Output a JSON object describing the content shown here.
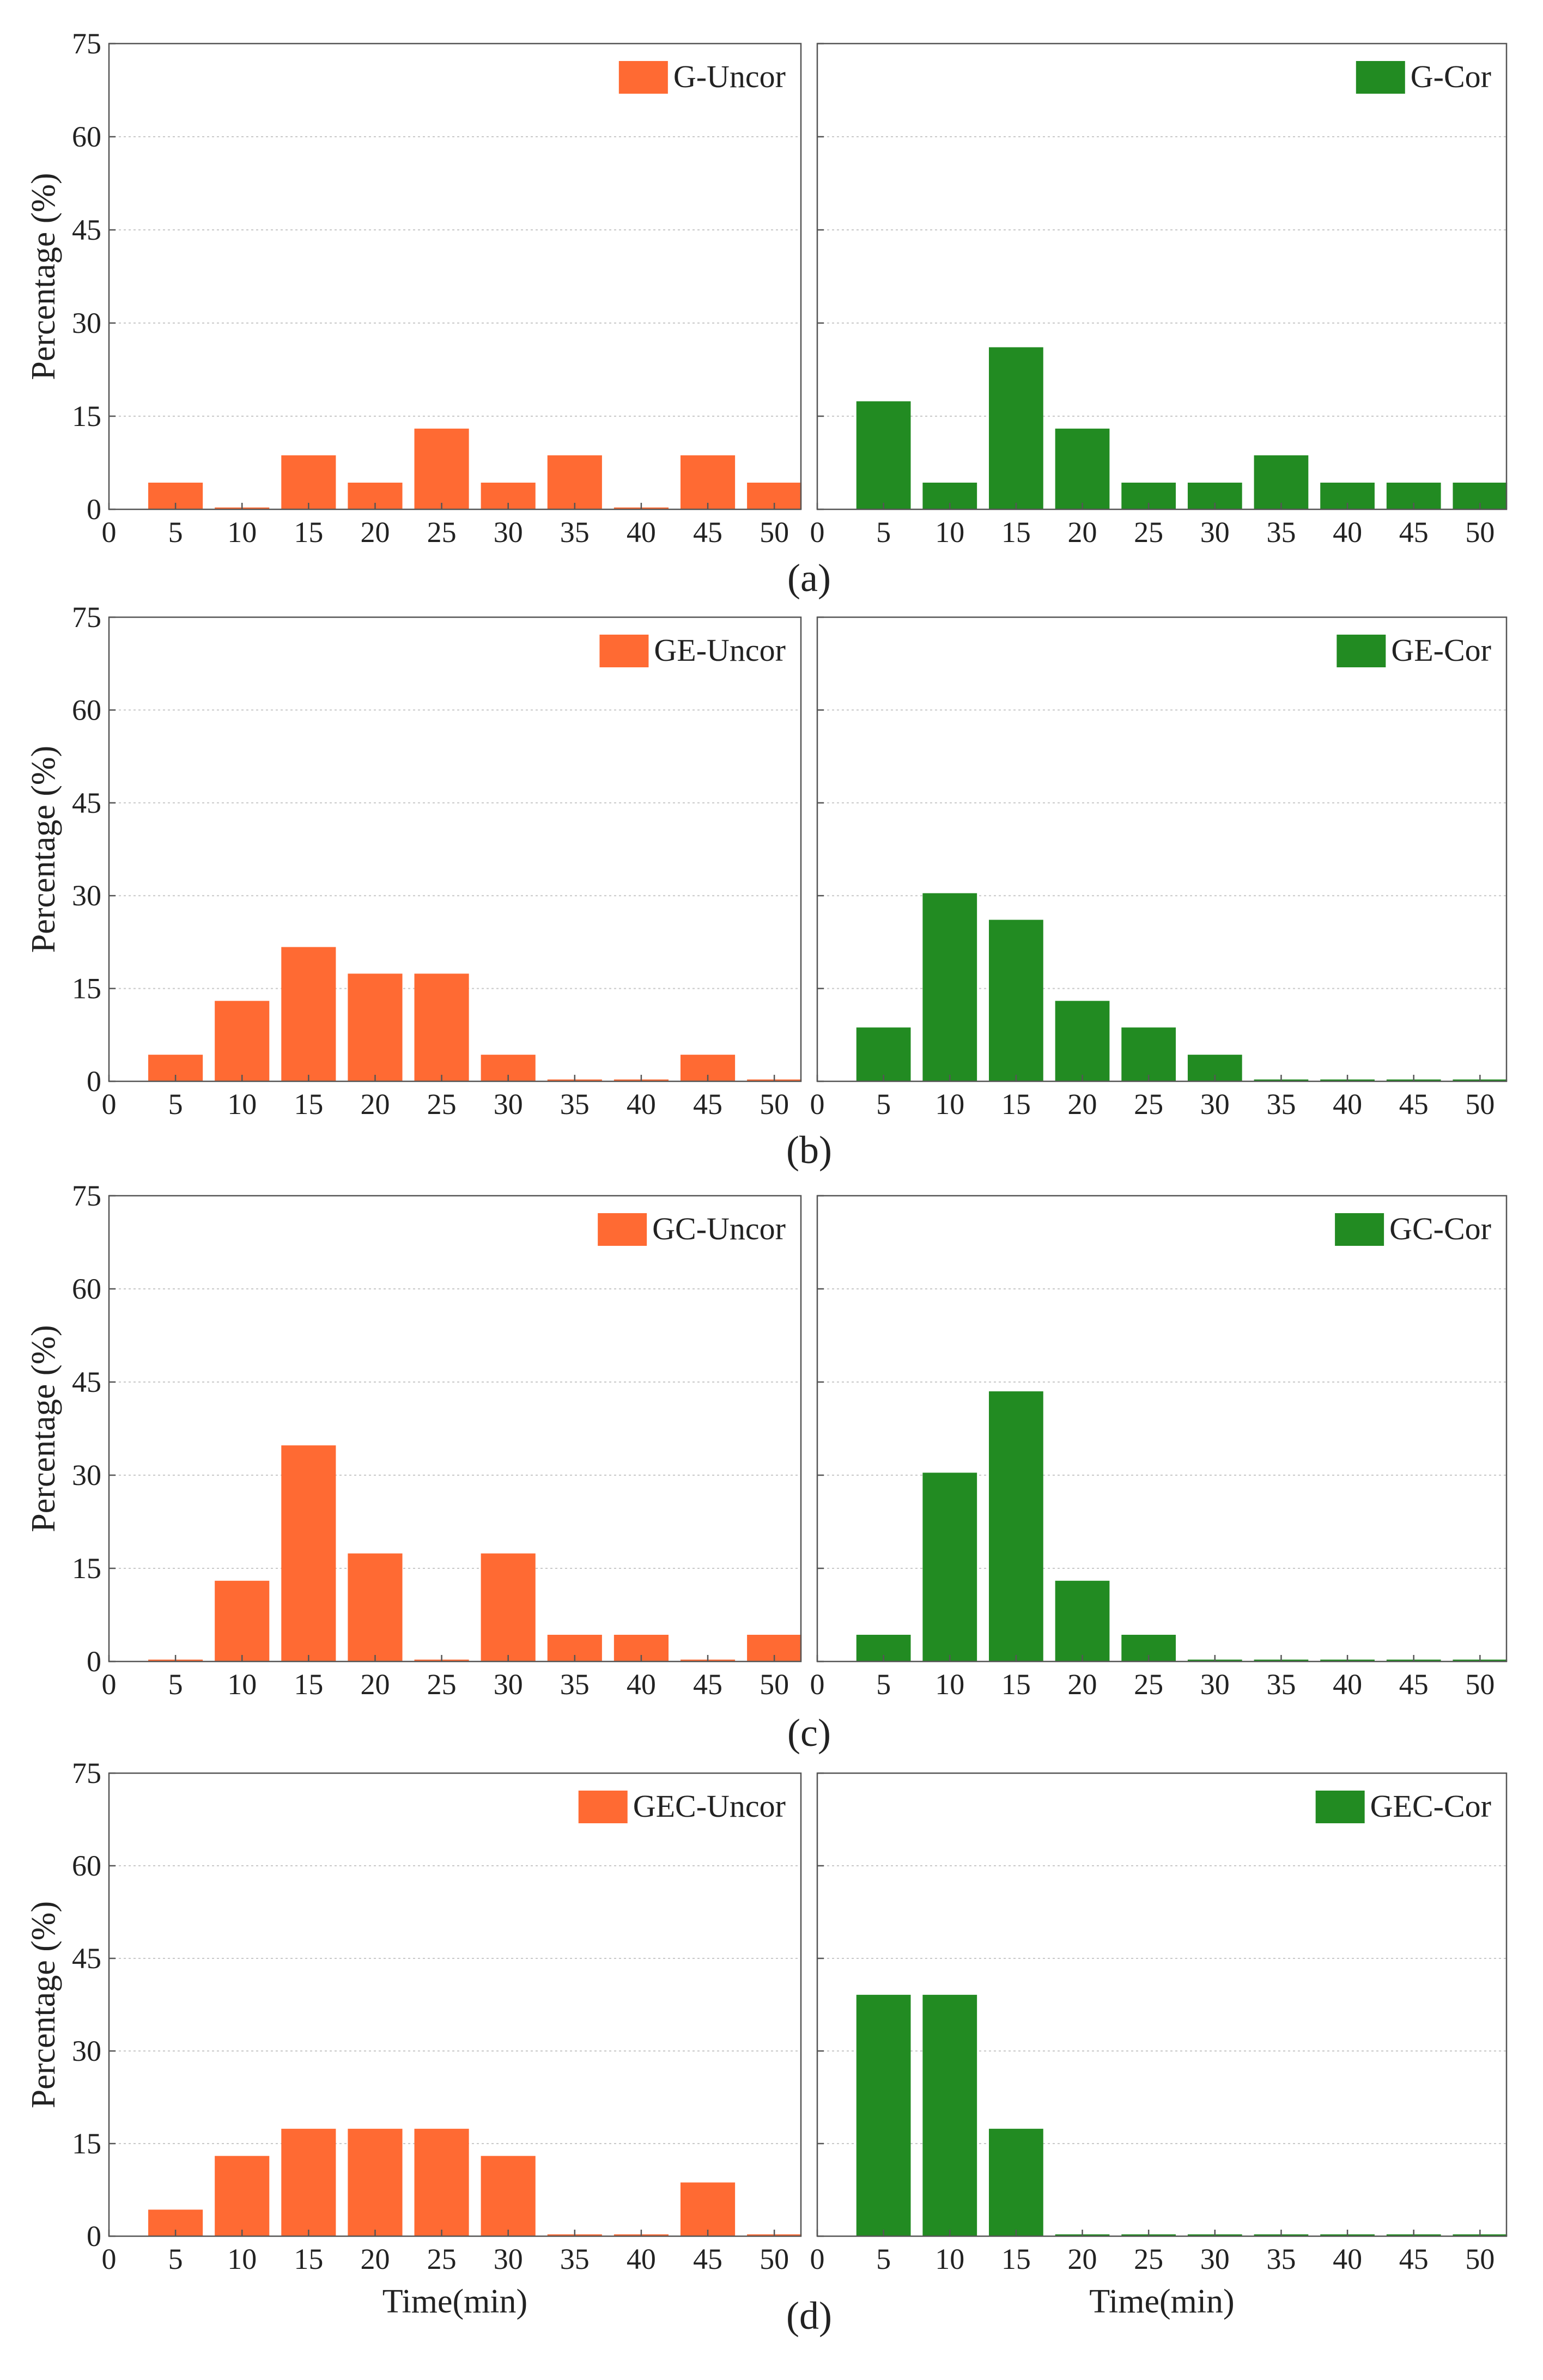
{
  "figure": {
    "panel_labels": [
      "(a)",
      "(b)",
      "(c)",
      "(d)"
    ]
  },
  "chart_data": [
    {
      "type": "bar",
      "row": 0,
      "col": 0,
      "legend": "G-Uncor",
      "color": "#FF6A33",
      "ylabel": "Percentage (%)",
      "xlabel": "",
      "ylim": [
        0,
        75
      ],
      "yticks": [
        0,
        15,
        30,
        45,
        60,
        75
      ],
      "xticks": [
        0,
        5,
        10,
        15,
        20,
        25,
        30,
        35,
        40,
        45,
        50
      ],
      "categories": [
        5,
        10,
        15,
        20,
        25,
        30,
        35,
        40,
        45,
        50
      ],
      "values": [
        4.3,
        0.3,
        8.7,
        4.3,
        13.0,
        4.3,
        8.7,
        0.3,
        8.7,
        4.3
      ]
    },
    {
      "type": "bar",
      "row": 0,
      "col": 1,
      "legend": "G-Cor",
      "color": "#228B22",
      "ylabel": "",
      "xlabel": "",
      "ylim": [
        0,
        75
      ],
      "yticks": [
        0,
        15,
        30,
        45,
        60,
        75
      ],
      "xticks": [
        0,
        5,
        10,
        15,
        20,
        25,
        30,
        35,
        40,
        45,
        50
      ],
      "categories": [
        5,
        10,
        15,
        20,
        25,
        30,
        35,
        40,
        45,
        50
      ],
      "values": [
        17.4,
        4.3,
        26.1,
        13.0,
        4.3,
        4.3,
        8.7,
        4.3,
        4.3,
        4.3
      ]
    },
    {
      "type": "bar",
      "row": 1,
      "col": 0,
      "legend": "GE-Uncor",
      "color": "#FF6A33",
      "ylabel": "Percentage (%)",
      "xlabel": "",
      "ylim": [
        0,
        75
      ],
      "yticks": [
        0,
        15,
        30,
        45,
        60,
        75
      ],
      "xticks": [
        0,
        5,
        10,
        15,
        20,
        25,
        30,
        35,
        40,
        45,
        50
      ],
      "categories": [
        5,
        10,
        15,
        20,
        25,
        30,
        35,
        40,
        45,
        50
      ],
      "values": [
        4.3,
        13.0,
        21.7,
        17.4,
        17.4,
        4.3,
        0.3,
        0.3,
        4.3,
        0.3
      ]
    },
    {
      "type": "bar",
      "row": 1,
      "col": 1,
      "legend": "GE-Cor",
      "color": "#228B22",
      "ylabel": "",
      "xlabel": "",
      "ylim": [
        0,
        75
      ],
      "yticks": [
        0,
        15,
        30,
        45,
        60,
        75
      ],
      "xticks": [
        0,
        5,
        10,
        15,
        20,
        25,
        30,
        35,
        40,
        45,
        50
      ],
      "categories": [
        5,
        10,
        15,
        20,
        25,
        30,
        35,
        40,
        45,
        50
      ],
      "values": [
        8.7,
        30.4,
        26.1,
        13.0,
        8.7,
        4.3,
        0.3,
        0.3,
        0.3,
        0.3
      ]
    },
    {
      "type": "bar",
      "row": 2,
      "col": 0,
      "legend": "GC-Uncor",
      "color": "#FF6A33",
      "ylabel": "Percentage (%)",
      "xlabel": "",
      "ylim": [
        0,
        75
      ],
      "yticks": [
        0,
        15,
        30,
        45,
        60,
        75
      ],
      "xticks": [
        0,
        5,
        10,
        15,
        20,
        25,
        30,
        35,
        40,
        45,
        50
      ],
      "categories": [
        5,
        10,
        15,
        20,
        25,
        30,
        35,
        40,
        45,
        50
      ],
      "values": [
        0.3,
        13.0,
        34.8,
        17.4,
        0.3,
        17.4,
        4.3,
        4.3,
        0.3,
        4.3
      ]
    },
    {
      "type": "bar",
      "row": 2,
      "col": 1,
      "legend": "GC-Cor",
      "color": "#228B22",
      "ylabel": "",
      "xlabel": "",
      "ylim": [
        0,
        75
      ],
      "yticks": [
        0,
        15,
        30,
        45,
        60,
        75
      ],
      "xticks": [
        0,
        5,
        10,
        15,
        20,
        25,
        30,
        35,
        40,
        45,
        50
      ],
      "categories": [
        5,
        10,
        15,
        20,
        25,
        30,
        35,
        40,
        45,
        50
      ],
      "values": [
        4.3,
        30.4,
        43.5,
        13.0,
        4.3,
        0.3,
        0.3,
        0.3,
        0.3,
        0.3
      ]
    },
    {
      "type": "bar",
      "row": 3,
      "col": 0,
      "legend": "GEC-Uncor",
      "color": "#FF6A33",
      "ylabel": "Percentage (%)",
      "xlabel": "Time(min)",
      "ylim": [
        0,
        75
      ],
      "yticks": [
        0,
        15,
        30,
        45,
        60,
        75
      ],
      "xticks": [
        0,
        5,
        10,
        15,
        20,
        25,
        30,
        35,
        40,
        45,
        50
      ],
      "categories": [
        5,
        10,
        15,
        20,
        25,
        30,
        35,
        40,
        45,
        50
      ],
      "values": [
        4.3,
        13.0,
        17.4,
        17.4,
        17.4,
        13.0,
        0.3,
        0.3,
        8.7,
        0.3
      ]
    },
    {
      "type": "bar",
      "row": 3,
      "col": 1,
      "legend": "GEC-Cor",
      "color": "#228B22",
      "ylabel": "",
      "xlabel": "Time(min)",
      "ylim": [
        0,
        75
      ],
      "yticks": [
        0,
        15,
        30,
        45,
        60,
        75
      ],
      "xticks": [
        0,
        5,
        10,
        15,
        20,
        25,
        30,
        35,
        40,
        45,
        50
      ],
      "categories": [
        5,
        10,
        15,
        20,
        25,
        30,
        35,
        40,
        45,
        50
      ],
      "values": [
        39.1,
        39.1,
        17.4,
        0.3,
        0.3,
        0.3,
        0.3,
        0.3,
        0.3,
        0.3
      ]
    }
  ]
}
